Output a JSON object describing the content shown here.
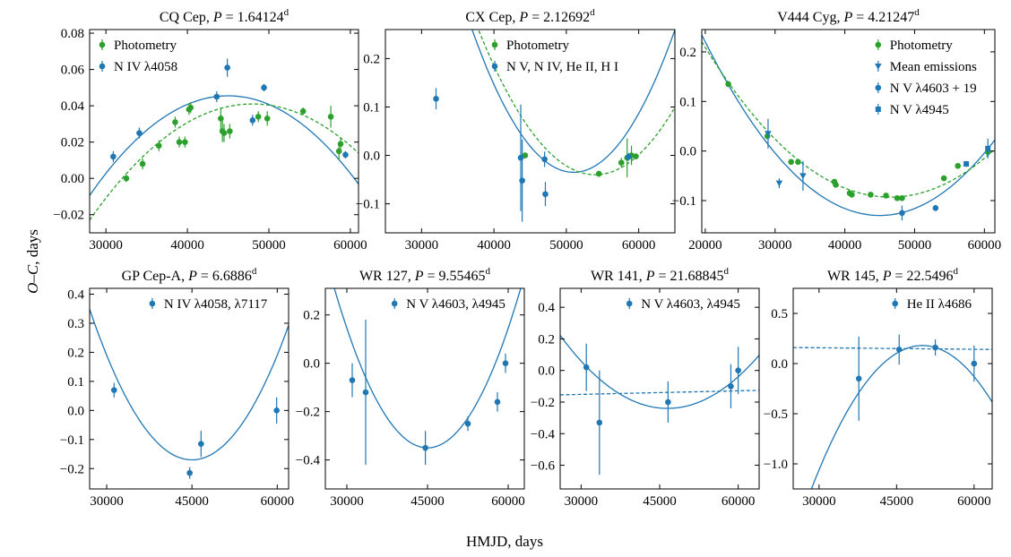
{
  "figure": {
    "ylabel_main": "O–C",
    "ylabel_unit": ", days",
    "xlabel": "HMJD, days"
  },
  "colors": {
    "green": "#2ca02c",
    "blue": "#1f77b4"
  },
  "chart_data": [
    {
      "type": "scatter",
      "star": "CQ Cep",
      "period": "1.64124",
      "xlim": [
        28000,
        61000
      ],
      "ylim": [
        -0.03,
        0.082
      ],
      "xticks": [
        30000,
        40000,
        50000,
        60000
      ],
      "yticks": [
        -0.02,
        0.0,
        0.02,
        0.04,
        0.06,
        0.08
      ],
      "ydecimals": 2,
      "legend_pos": "top-left",
      "series": [
        {
          "name": "Photometry",
          "color": "#2ca02c",
          "marker": "circle",
          "points": [
            [
              32500,
              0.0,
              0.002
            ],
            [
              34500,
              0.008,
              0.003
            ],
            [
              36500,
              0.018,
              0.003
            ],
            [
              38500,
              0.031,
              0.003
            ],
            [
              39000,
              0.02,
              0.003
            ],
            [
              39700,
              0.02,
              0.003
            ],
            [
              40200,
              0.038,
              0.003
            ],
            [
              40400,
              0.039,
              0.003
            ],
            [
              44100,
              0.033,
              0.006
            ],
            [
              44300,
              0.026,
              0.006
            ],
            [
              44500,
              0.025,
              0.005
            ],
            [
              45200,
              0.026,
              0.004
            ],
            [
              48700,
              0.034,
              0.003
            ],
            [
              49800,
              0.033,
              0.004
            ],
            [
              54200,
              0.037,
              0.002
            ],
            [
              57600,
              0.034,
              0.006
            ],
            [
              58600,
              0.015,
              0.005
            ],
            [
              58800,
              0.019,
              0.003
            ]
          ]
        },
        {
          "name": "N IV λ4058",
          "color": "#1f77b4",
          "marker": "circle",
          "points": [
            [
              30900,
              0.012,
              0.003
            ],
            [
              34100,
              0.025,
              0.003
            ],
            [
              43600,
              0.045,
              0.003
            ],
            [
              44900,
              0.061,
              0.005
            ],
            [
              48000,
              0.032,
              0.003
            ],
            [
              49400,
              0.05,
              0.002
            ],
            [
              59400,
              0.013,
              0.002
            ]
          ]
        }
      ],
      "curves": [
        {
          "color": "#1f77b4",
          "dash": false,
          "x0": 45000,
          "y0": 0.0455,
          "a": -1.9e-10
        },
        {
          "color": "#2ca02c",
          "dash": true,
          "x0": 48000,
          "y0": 0.041,
          "a": -1.6e-10
        }
      ]
    },
    {
      "type": "scatter",
      "star": "CX Cep",
      "period": "2.12692",
      "xlim": [
        25000,
        65000
      ],
      "ylim": [
        -0.16,
        0.26
      ],
      "xticks": [
        30000,
        40000,
        50000,
        60000
      ],
      "yticks": [
        -0.1,
        0.0,
        0.1,
        0.2
      ],
      "ydecimals": 1,
      "legend_pos": "top-right",
      "series": [
        {
          "name": "Photometry",
          "color": "#2ca02c",
          "marker": "circle",
          "points": [
            [
              44300,
              0.0,
              0.006
            ],
            [
              54500,
              -0.038,
              0.006
            ],
            [
              57600,
              -0.015,
              0.01
            ],
            [
              58400,
              -0.005,
              0.04
            ],
            [
              59000,
              0.0,
              0.02
            ],
            [
              59600,
              -0.002,
              0.005
            ]
          ]
        },
        {
          "name": "N V, N IV, He II, H I",
          "color": "#1f77b4",
          "marker": "circle",
          "points": [
            [
              32000,
              0.117,
              0.022
            ],
            [
              43700,
              -0.005,
              0.11
            ],
            [
              43900,
              -0.052,
              0.085
            ],
            [
              47000,
              -0.008,
              0.016
            ],
            [
              47100,
              -0.08,
              0.025
            ],
            [
              58600,
              -0.003,
              0.008
            ]
          ]
        }
      ],
      "curves": [
        {
          "color": "#1f77b4",
          "dash": false,
          "x0": 51000,
          "y0": -0.035,
          "a": 1.5e-09
        },
        {
          "color": "#2ca02c",
          "dash": true,
          "x0": 54000,
          "y0": -0.04,
          "a": 1.15e-09
        }
      ]
    },
    {
      "type": "scatter",
      "star": "V444 Cyg",
      "period": "4.21247",
      "xlim": [
        19500,
        61500
      ],
      "ylim": [
        -0.165,
        0.245
      ],
      "xticks": [
        20000,
        30000,
        40000,
        50000,
        60000
      ],
      "yticks": [
        -0.1,
        0.0,
        0.1,
        0.2
      ],
      "ydecimals": 1,
      "legend_pos": "top-right",
      "series": [
        {
          "name": "Photometry",
          "color": "#2ca02c",
          "marker": "circle",
          "points": [
            [
              23300,
              0.135,
              0.005
            ],
            [
              28900,
              0.03,
              0.005
            ],
            [
              32300,
              -0.022,
              0.005
            ],
            [
              33300,
              -0.022,
              0.005
            ],
            [
              38500,
              -0.062,
              0.005
            ],
            [
              38700,
              -0.068,
              0.005
            ],
            [
              40700,
              -0.085,
              0.005
            ],
            [
              41000,
              -0.088,
              0.005
            ],
            [
              43700,
              -0.088,
              0.005
            ],
            [
              45900,
              -0.09,
              0.005
            ],
            [
              47500,
              -0.095,
              0.005
            ],
            [
              48200,
              -0.095,
              0.005
            ],
            [
              54200,
              -0.055,
              0.005
            ],
            [
              56200,
              -0.03,
              0.005
            ],
            [
              60500,
              -0.002,
              0.005
            ]
          ]
        },
        {
          "name": "Mean emissions",
          "color": "#1f77b4",
          "marker": "triangle",
          "points": [
            [
              29000,
              0.035,
              0.03
            ],
            [
              30600,
              -0.065,
              0.01
            ],
            [
              34000,
              -0.05,
              0.03
            ]
          ]
        },
        {
          "name": "N V λ4603 + 19",
          "color": "#1f77b4",
          "marker": "circle",
          "points": [
            [
              48200,
              -0.125,
              0.015
            ],
            [
              53000,
              -0.115,
              0.006
            ]
          ]
        },
        {
          "name": "N V λ4945",
          "color": "#1f77b4",
          "marker": "square",
          "points": [
            [
              57400,
              -0.026,
              0.006
            ],
            [
              60500,
              0.005,
              0.02
            ]
          ]
        }
      ],
      "curves": [
        {
          "color": "#1f77b4",
          "dash": false,
          "x0": 45000,
          "y0": -0.13,
          "a": 5.6e-10
        },
        {
          "color": "#2ca02c",
          "dash": true,
          "x0": 46500,
          "y0": -0.093,
          "a": 4.3e-10
        }
      ]
    },
    {
      "type": "scatter",
      "star": "GP Cep-A",
      "period": "6.6886",
      "xlim": [
        27000,
        62000
      ],
      "ylim": [
        -0.27,
        0.42
      ],
      "xticks": [
        30000,
        45000,
        60000
      ],
      "yticks": [
        -0.2,
        -0.1,
        0.0,
        0.1,
        0.2,
        0.3,
        0.4
      ],
      "ydecimals": 1,
      "legend_pos": "top-right",
      "series": [
        {
          "name": "N IV λ4058, λ7117",
          "color": "#1f77b4",
          "marker": "circle",
          "points": [
            [
              31300,
              0.07,
              0.025
            ],
            [
              44600,
              -0.215,
              0.02
            ],
            [
              46600,
              -0.115,
              0.045
            ],
            [
              59900,
              0.0,
              0.045
            ]
          ]
        }
      ],
      "curves": [
        {
          "color": "#1f77b4",
          "dash": false,
          "x0": 45000,
          "y0": -0.17,
          "a": 1.6e-09
        }
      ]
    },
    {
      "type": "scatter",
      "star": "WR 127",
      "period": "9.55465",
      "xlim": [
        26000,
        63000
      ],
      "ylim": [
        -0.52,
        0.31
      ],
      "xticks": [
        30000,
        45000,
        60000
      ],
      "yticks": [
        -0.4,
        -0.2,
        0.0,
        0.2
      ],
      "ydecimals": 1,
      "legend_pos": "top-right",
      "series": [
        {
          "name": "N V λ4603, λ4945",
          "color": "#1f77b4",
          "marker": "circle",
          "points": [
            [
              31000,
              -0.07,
              0.07
            ],
            [
              33500,
              -0.12,
              0.3
            ],
            [
              44600,
              -0.35,
              0.07
            ],
            [
              52500,
              -0.25,
              0.03
            ],
            [
              58000,
              -0.16,
              0.04
            ],
            [
              59500,
              0.0,
              0.04
            ]
          ]
        }
      ],
      "curves": [
        {
          "color": "#1f77b4",
          "dash": false,
          "x0": 45000,
          "y0": -0.35,
          "a": 2.2e-09
        }
      ]
    },
    {
      "type": "scatter",
      "star": "WR 141",
      "period": "21.68845",
      "xlim": [
        26000,
        64000
      ],
      "ylim": [
        -0.75,
        0.52
      ],
      "xticks": [
        30000,
        45000,
        60000
      ],
      "yticks": [
        -0.6,
        -0.4,
        -0.2,
        0.0,
        0.2,
        0.4
      ],
      "ydecimals": 1,
      "legend_pos": "top-right",
      "series": [
        {
          "name": "N V λ4603, λ4945",
          "color": "#1f77b4",
          "marker": "circle",
          "points": [
            [
              31000,
              0.02,
              0.15
            ],
            [
              33500,
              -0.33,
              0.33
            ],
            [
              46600,
              -0.2,
              0.13
            ],
            [
              58600,
              -0.1,
              0.14
            ],
            [
              60000,
              0.0,
              0.15
            ]
          ]
        }
      ],
      "curves": [
        {
          "color": "#1f77b4",
          "dash": false,
          "x0": 46500,
          "y0": -0.24,
          "a": 1.1e-09
        },
        {
          "color": "#1f77b4",
          "dash": true,
          "linear": true,
          "m": 7.5e-07,
          "b": -0.14
        }
      ]
    },
    {
      "type": "scatter",
      "star": "WR 145",
      "period": "22.5496",
      "xlim": [
        25000,
        63500
      ],
      "ylim": [
        -1.25,
        0.75
      ],
      "xticks": [
        30000,
        45000,
        60000
      ],
      "yticks": [
        -1.0,
        -0.5,
        0.0,
        0.5
      ],
      "ydecimals": 1,
      "legend_pos": "top-right",
      "series": [
        {
          "name": "He II λ4686",
          "color": "#1f77b4",
          "marker": "circle",
          "points": [
            [
              37700,
              -0.15,
              0.42
            ],
            [
              45500,
              0.14,
              0.15
            ],
            [
              52500,
              0.16,
              0.08
            ],
            [
              60000,
              0.0,
              0.18
            ]
          ]
        }
      ],
      "curves": [
        {
          "color": "#1f77b4",
          "dash": false,
          "x0": 50000,
          "y0": 0.18,
          "a": -3.1e-09
        },
        {
          "color": "#1f77b4",
          "dash": true,
          "linear": true,
          "m": -5e-07,
          "b": 0.15
        }
      ]
    }
  ]
}
